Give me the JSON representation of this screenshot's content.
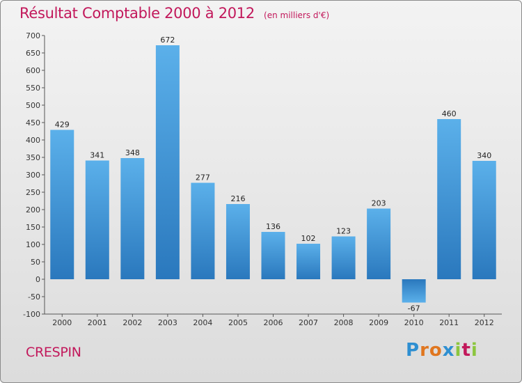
{
  "chart_data": {
    "type": "bar",
    "title": "Résultat Comptable 2000 à 2012",
    "subtitle": "(en milliers d'€)",
    "categories": [
      "2000",
      "2001",
      "2002",
      "2003",
      "2004",
      "2005",
      "2006",
      "2007",
      "2008",
      "2009",
      "2010",
      "2011",
      "2012"
    ],
    "values": [
      429,
      341,
      348,
      672,
      277,
      216,
      136,
      102,
      123,
      203,
      -67,
      460,
      340
    ],
    "value_labels": [
      "429",
      "341",
      "348",
      "672",
      "277",
      "216",
      "136",
      "102",
      "123",
      "203",
      "-67",
      "460",
      "340"
    ],
    "ylim": [
      -100,
      700
    ],
    "yticks": [
      -100,
      -50,
      0,
      50,
      100,
      150,
      200,
      250,
      300,
      350,
      400,
      450,
      500,
      550,
      600,
      650,
      700
    ],
    "ytick_labels": [
      "-100",
      "-50",
      "0",
      "50",
      "100",
      "150",
      "200",
      "250",
      "300",
      "350",
      "400",
      "450",
      "500",
      "550",
      "600",
      "650",
      "700"
    ],
    "grid": false,
    "bar_color": "#3a8fd3",
    "bar_color_light": "#5bb0ea",
    "bar_color_dark": "#2a78bd"
  },
  "footer": {
    "commune": "CRESPIN",
    "logo_letters": [
      "P",
      "r",
      "o",
      "x",
      "i",
      "t",
      "i"
    ],
    "logo_colors": [
      "#2e8fd1",
      "#e0761f",
      "#e0761f",
      "#2e8fd1",
      "#8cc63f",
      "#c2185b",
      "#8cc63f"
    ]
  },
  "colors": {
    "title": "#c2185b",
    "axis": "#333333"
  }
}
